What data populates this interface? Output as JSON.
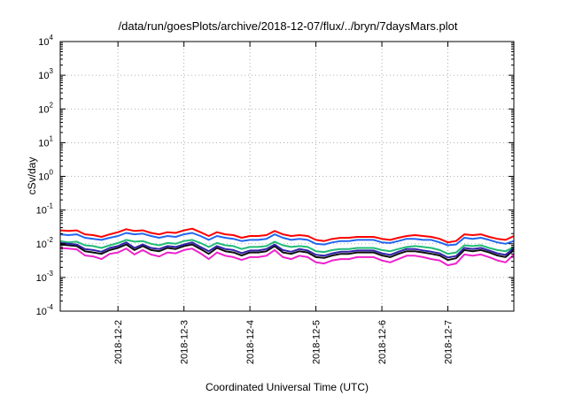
{
  "chart_data": {
    "type": "line",
    "title": "/data/run/goesPlots/archive/2018-12-07/flux/../bryn/7daysMars.plot",
    "xlabel": "Coordinated Universal Time (UTC)",
    "ylabel": "cSv/day",
    "yscale": "log",
    "ylim": [
      0.0001,
      10000
    ],
    "xlim": [
      "2018-12-01T03:00",
      "2018-12-08T00:00"
    ],
    "grid": true,
    "legend": "none",
    "x_ticks": [
      "2018-12-2",
      "2018-12-3",
      "2018-12-4",
      "2018-12-5",
      "2018-12-6",
      "2018-12-7"
    ],
    "y_ticks": [
      {
        "base": "10",
        "exp": "-4"
      },
      {
        "base": "10",
        "exp": "-3"
      },
      {
        "base": "10",
        "exp": "-2"
      },
      {
        "base": "10",
        "exp": "-1"
      },
      {
        "base": "10",
        "exp": "0"
      },
      {
        "base": "10",
        "exp": "1"
      },
      {
        "base": "10",
        "exp": "2"
      },
      {
        "base": "10",
        "exp": "3"
      },
      {
        "base": "10",
        "exp": "4"
      }
    ],
    "x": [
      "2018-12-01T03:00",
      "2018-12-01T06:00",
      "2018-12-01T09:00",
      "2018-12-01T12:00",
      "2018-12-01T15:00",
      "2018-12-01T18:00",
      "2018-12-01T21:00",
      "2018-12-02T00:00",
      "2018-12-02T03:00",
      "2018-12-02T06:00",
      "2018-12-02T09:00",
      "2018-12-02T12:00",
      "2018-12-02T15:00",
      "2018-12-02T18:00",
      "2018-12-02T21:00",
      "2018-12-03T00:00",
      "2018-12-03T03:00",
      "2018-12-03T06:00",
      "2018-12-03T09:00",
      "2018-12-03T12:00",
      "2018-12-03T15:00",
      "2018-12-03T18:00",
      "2018-12-03T21:00",
      "2018-12-04T00:00",
      "2018-12-04T03:00",
      "2018-12-04T06:00",
      "2018-12-04T09:00",
      "2018-12-04T12:00",
      "2018-12-04T15:00",
      "2018-12-04T18:00",
      "2018-12-04T21:00",
      "2018-12-05T00:00",
      "2018-12-05T03:00",
      "2018-12-05T06:00",
      "2018-12-05T09:00",
      "2018-12-05T12:00",
      "2018-12-05T15:00",
      "2018-12-05T18:00",
      "2018-12-05T21:00",
      "2018-12-06T00:00",
      "2018-12-06T03:00",
      "2018-12-06T06:00",
      "2018-12-06T09:00",
      "2018-12-06T12:00",
      "2018-12-06T15:00",
      "2018-12-06T18:00",
      "2018-12-06T21:00",
      "2018-12-07T00:00",
      "2018-12-07T03:00",
      "2018-12-07T06:00",
      "2018-12-07T09:00",
      "2018-12-07T12:00",
      "2018-12-07T15:00",
      "2018-12-07T18:00",
      "2018-12-07T21:00",
      "2018-12-08T00:00"
    ],
    "series": [
      {
        "color": "#ff0000",
        "values": [
          0.025,
          0.024,
          0.025,
          0.019,
          0.018,
          0.016,
          0.019,
          0.022,
          0.027,
          0.024,
          0.025,
          0.021,
          0.019,
          0.022,
          0.021,
          0.025,
          0.028,
          0.022,
          0.017,
          0.022,
          0.019,
          0.018,
          0.015,
          0.017,
          0.017,
          0.018,
          0.024,
          0.019,
          0.017,
          0.018,
          0.017,
          0.013,
          0.012,
          0.014,
          0.015,
          0.015,
          0.016,
          0.016,
          0.016,
          0.014,
          0.013,
          0.015,
          0.017,
          0.018,
          0.017,
          0.016,
          0.014,
          0.011,
          0.012,
          0.019,
          0.018,
          0.019,
          0.016,
          0.014,
          0.013,
          0.017
        ]
      },
      {
        "color": "#2266ee",
        "values": [
          0.019,
          0.018,
          0.019,
          0.015,
          0.014,
          0.013,
          0.015,
          0.017,
          0.021,
          0.019,
          0.02,
          0.017,
          0.015,
          0.017,
          0.016,
          0.019,
          0.021,
          0.017,
          0.013,
          0.017,
          0.015,
          0.014,
          0.012,
          0.013,
          0.013,
          0.014,
          0.019,
          0.015,
          0.013,
          0.014,
          0.013,
          0.01,
          0.0095,
          0.011,
          0.012,
          0.012,
          0.013,
          0.013,
          0.013,
          0.011,
          0.0105,
          0.012,
          0.014,
          0.014,
          0.013,
          0.013,
          0.011,
          0.009,
          0.0095,
          0.015,
          0.014,
          0.015,
          0.013,
          0.011,
          0.01,
          0.012
        ]
      },
      {
        "color": "#22bb77",
        "values": [
          0.012,
          0.011,
          0.0115,
          0.009,
          0.0085,
          0.0075,
          0.009,
          0.0105,
          0.013,
          0.0115,
          0.012,
          0.01,
          0.009,
          0.0105,
          0.01,
          0.012,
          0.013,
          0.0105,
          0.008,
          0.0105,
          0.009,
          0.0085,
          0.007,
          0.008,
          0.008,
          0.0085,
          0.0115,
          0.009,
          0.008,
          0.0085,
          0.008,
          0.006,
          0.0057,
          0.0065,
          0.007,
          0.007,
          0.0075,
          0.0075,
          0.0075,
          0.0065,
          0.006,
          0.007,
          0.008,
          0.0085,
          0.008,
          0.0075,
          0.0065,
          0.005,
          0.0055,
          0.009,
          0.0085,
          0.009,
          0.0075,
          0.0065,
          0.006,
          0.008
        ]
      },
      {
        "color": "#111111",
        "values": [
          0.0095,
          0.009,
          0.0085,
          0.006,
          0.0055,
          0.005,
          0.0065,
          0.0075,
          0.0095,
          0.0065,
          0.0085,
          0.0065,
          0.006,
          0.0075,
          0.007,
          0.0085,
          0.0095,
          0.007,
          0.005,
          0.0075,
          0.006,
          0.0055,
          0.0045,
          0.0055,
          0.0055,
          0.006,
          0.0085,
          0.0055,
          0.005,
          0.006,
          0.0055,
          0.004,
          0.0038,
          0.0045,
          0.005,
          0.005,
          0.0055,
          0.0055,
          0.0055,
          0.0045,
          0.004,
          0.005,
          0.006,
          0.006,
          0.0055,
          0.005,
          0.0045,
          0.0033,
          0.0037,
          0.0065,
          0.006,
          0.0065,
          0.0055,
          0.0045,
          0.004,
          0.0065
        ]
      },
      {
        "color": "#3322aa",
        "values": [
          0.0105,
          0.01,
          0.0095,
          0.007,
          0.0065,
          0.0058,
          0.0075,
          0.0085,
          0.011,
          0.0075,
          0.0095,
          0.0075,
          0.007,
          0.0085,
          0.008,
          0.0095,
          0.011,
          0.008,
          0.006,
          0.0085,
          0.007,
          0.0065,
          0.0053,
          0.0063,
          0.0063,
          0.007,
          0.0095,
          0.0065,
          0.0058,
          0.007,
          0.0063,
          0.0047,
          0.0044,
          0.0052,
          0.0058,
          0.0058,
          0.0063,
          0.0063,
          0.0063,
          0.0052,
          0.0047,
          0.0058,
          0.007,
          0.007,
          0.0063,
          0.0058,
          0.0052,
          0.0039,
          0.0043,
          0.0075,
          0.007,
          0.0075,
          0.0063,
          0.0052,
          0.0047,
          0.0075
        ]
      },
      {
        "color": "#ee22cc",
        "values": [
          0.0075,
          0.0072,
          0.0068,
          0.0045,
          0.0042,
          0.0035,
          0.005,
          0.0055,
          0.0072,
          0.0048,
          0.0065,
          0.0048,
          0.0042,
          0.0055,
          0.0052,
          0.0065,
          0.0072,
          0.0052,
          0.0035,
          0.0055,
          0.0044,
          0.004,
          0.0033,
          0.004,
          0.004,
          0.0044,
          0.0065,
          0.004,
          0.0035,
          0.0044,
          0.004,
          0.0028,
          0.0026,
          0.0032,
          0.0035,
          0.0035,
          0.004,
          0.004,
          0.004,
          0.0032,
          0.0028,
          0.0035,
          0.0044,
          0.0044,
          0.004,
          0.0035,
          0.0032,
          0.0023,
          0.0026,
          0.0048,
          0.0044,
          0.0048,
          0.004,
          0.0032,
          0.0028,
          0.0048
        ]
      }
    ]
  }
}
